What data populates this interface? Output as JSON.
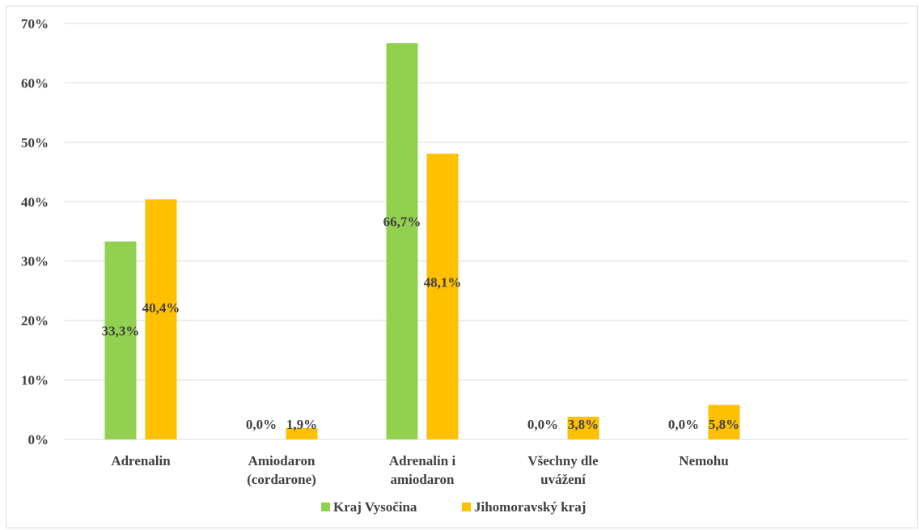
{
  "chart_data": {
    "type": "bar",
    "categories": [
      [
        "Adrenalin"
      ],
      [
        "Amiodaron",
        "(cordarone)"
      ],
      [
        "Adrenalin i",
        "amiodaron"
      ],
      [
        "Všechny dle",
        "uvážení"
      ],
      [
        "Nemohu"
      ]
    ],
    "series": [
      {
        "name": "Kraj Vysočina",
        "color": "#92d050",
        "values": [
          33.3,
          0.0,
          66.7,
          0.0,
          0.0
        ],
        "labels": [
          "33,3%",
          "0,0%",
          "66,7%",
          "0,0%",
          "0,0%"
        ]
      },
      {
        "name": "Jihomoravský kraj",
        "color": "#ffc000",
        "values": [
          40.4,
          1.9,
          48.1,
          3.8,
          5.8
        ],
        "labels": [
          "40,4%",
          "1,9%",
          "48,1%",
          "3,8%",
          "5,8%"
        ]
      }
    ],
    "y_ticks": [
      "0%",
      "10%",
      "20%",
      "30%",
      "40%",
      "50%",
      "60%",
      "70%"
    ],
    "ylim": [
      0,
      70
    ],
    "grid": true,
    "legend_position": "bottom",
    "colors": {
      "grid": "#d9d9d9",
      "text": "#404040"
    }
  }
}
